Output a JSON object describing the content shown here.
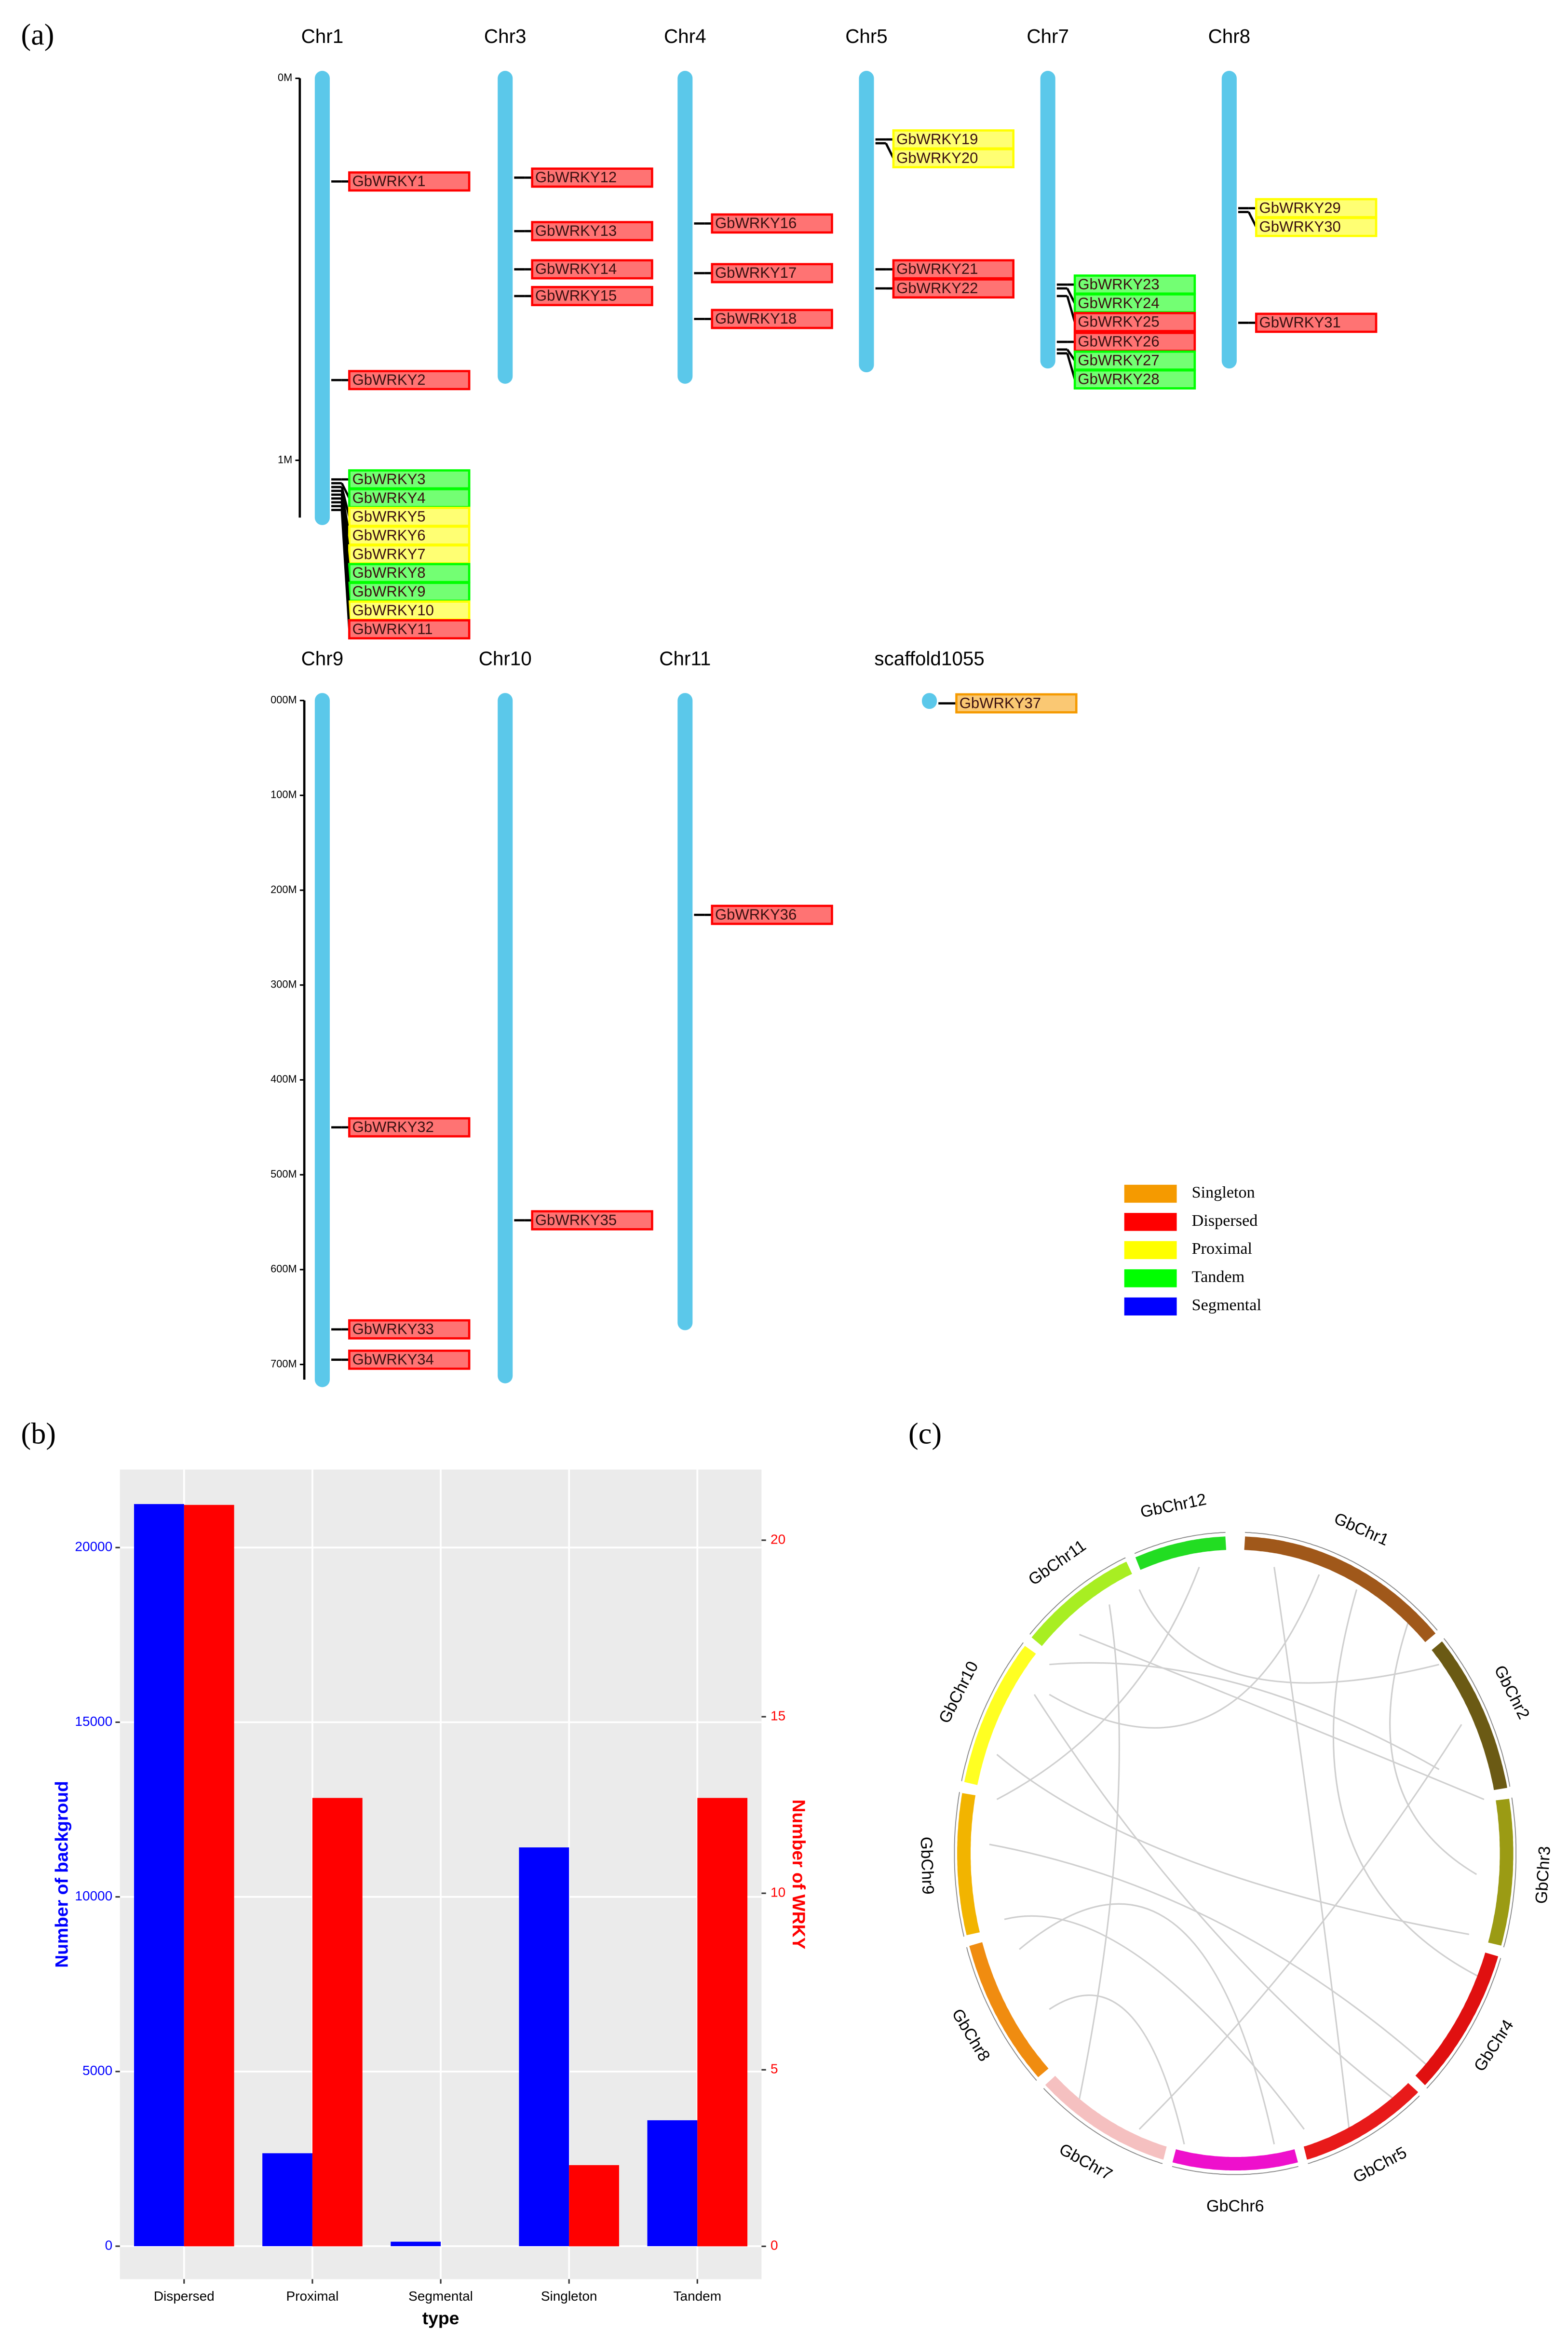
{
  "panel_labels": [
    "(a)",
    "(b)",
    "(c)"
  ],
  "gene_map": {
    "legend": [
      {
        "name": "Singleton",
        "color": "#f59a00"
      },
      {
        "name": "Dispersed",
        "color": "#ff0000"
      },
      {
        "name": "Proximal",
        "color": "#ffff00"
      },
      {
        "name": "Tandem",
        "color": "#00ff00"
      },
      {
        "name": "Segmental",
        "color": "#0000ff"
      }
    ],
    "rows": [
      {
        "ylim": [
          0,
          1.15
        ],
        "ticks": [
          {
            "value": 0,
            "label": "0M"
          },
          {
            "value": 1,
            "label": "1M"
          }
        ],
        "chromosomes": [
          {
            "name": "Chr1",
            "length": 1.15,
            "genes": [
              {
                "name": "GbWRKY1",
                "position": 0.27,
                "color": "#ff0000"
              },
              {
                "name": "GbWRKY2",
                "position": 0.79,
                "color": "#ff0000"
              },
              {
                "name": "GbWRKY3",
                "position": 1.05,
                "color": "#00ff00"
              },
              {
                "name": "GbWRKY4",
                "position": 1.06,
                "color": "#00ff00"
              },
              {
                "name": "GbWRKY5",
                "position": 1.07,
                "color": "#ffff00"
              },
              {
                "name": "GbWRKY6",
                "position": 1.08,
                "color": "#ffff00"
              },
              {
                "name": "GbWRKY7",
                "position": 1.09,
                "color": "#ffff00"
              },
              {
                "name": "GbWRKY8",
                "position": 1.1,
                "color": "#00ff00"
              },
              {
                "name": "GbWRKY9",
                "position": 1.11,
                "color": "#00ff00"
              },
              {
                "name": "GbWRKY10",
                "position": 1.12,
                "color": "#ffff00"
              },
              {
                "name": "GbWRKY11",
                "position": 1.13,
                "color": "#ff0000"
              }
            ]
          },
          {
            "name": "Chr3",
            "length": 0.78,
            "genes": [
              {
                "name": "GbWRKY12",
                "position": 0.26,
                "color": "#ff0000"
              },
              {
                "name": "GbWRKY13",
                "position": 0.4,
                "color": "#ff0000"
              },
              {
                "name": "GbWRKY14",
                "position": 0.5,
                "color": "#ff0000"
              },
              {
                "name": "GbWRKY15",
                "position": 0.57,
                "color": "#ff0000"
              }
            ]
          },
          {
            "name": "Chr4",
            "length": 0.78,
            "genes": [
              {
                "name": "GbWRKY16",
                "position": 0.38,
                "color": "#ff0000"
              },
              {
                "name": "GbWRKY17",
                "position": 0.51,
                "color": "#ff0000"
              },
              {
                "name": "GbWRKY18",
                "position": 0.63,
                "color": "#ff0000"
              }
            ]
          },
          {
            "name": "Chr5",
            "length": 0.75,
            "genes": [
              {
                "name": "GbWRKY19",
                "position": 0.16,
                "color": "#ffff00"
              },
              {
                "name": "GbWRKY20",
                "position": 0.17,
                "color": "#ffff00"
              },
              {
                "name": "GbWRKY21",
                "position": 0.5,
                "color": "#ff0000"
              },
              {
                "name": "GbWRKY22",
                "position": 0.55,
                "color": "#ff0000"
              }
            ]
          },
          {
            "name": "Chr7",
            "length": 0.74,
            "genes": [
              {
                "name": "GbWRKY23",
                "position": 0.54,
                "color": "#00ff00"
              },
              {
                "name": "GbWRKY24",
                "position": 0.55,
                "color": "#00ff00"
              },
              {
                "name": "GbWRKY25",
                "position": 0.57,
                "color": "#ff0000"
              },
              {
                "name": "GbWRKY26",
                "position": 0.69,
                "color": "#ff0000"
              },
              {
                "name": "GbWRKY27",
                "position": 0.71,
                "color": "#00ff00"
              },
              {
                "name": "GbWRKY28",
                "position": 0.72,
                "color": "#00ff00"
              }
            ]
          },
          {
            "name": "Chr8",
            "length": 0.74,
            "genes": [
              {
                "name": "GbWRKY29",
                "position": 0.34,
                "color": "#ffff00"
              },
              {
                "name": "GbWRKY30",
                "position": 0.35,
                "color": "#ffff00"
              },
              {
                "name": "GbWRKY31",
                "position": 0.64,
                "color": "#ff0000"
              }
            ]
          }
        ]
      },
      {
        "ylim": [
          0,
          716
        ],
        "ticks": [
          {
            "value": 0,
            "label": "000M"
          },
          {
            "value": 100,
            "label": "100M"
          },
          {
            "value": 200,
            "label": "200M"
          },
          {
            "value": 300,
            "label": "300M"
          },
          {
            "value": 400,
            "label": "400M"
          },
          {
            "value": 500,
            "label": "500M"
          },
          {
            "value": 600,
            "label": "600M"
          },
          {
            "value": 700,
            "label": "700M"
          }
        ],
        "chromosomes": [
          {
            "name": "Chr9",
            "length": 716,
            "genes": [
              {
                "name": "GbWRKY32",
                "position": 450,
                "color": "#ff0000"
              },
              {
                "name": "GbWRKY33",
                "position": 663,
                "color": "#ff0000"
              },
              {
                "name": "GbWRKY34",
                "position": 695,
                "color": "#ff0000"
              }
            ]
          },
          {
            "name": "Chr10",
            "length": 712,
            "genes": [
              {
                "name": "GbWRKY35",
                "position": 548,
                "color": "#ff0000"
              }
            ]
          },
          {
            "name": "Chr11",
            "length": 656,
            "genes": [
              {
                "name": "GbWRKY36",
                "position": 226,
                "color": "#ff0000"
              }
            ]
          },
          {
            "name": "scaffold1055",
            "length": 1,
            "genes": [
              {
                "name": "GbWRKY37",
                "position": 3,
                "color": "#f59a00"
              }
            ]
          }
        ]
      }
    ]
  },
  "chart_data": {
    "type": "bar",
    "x_label": "type",
    "y_label": "Number of backgroud",
    "y2_label": "Number of WRKY",
    "categories": [
      "Dispersed",
      "Proximal",
      "Segmental",
      "Singleton",
      "Tandem"
    ],
    "series": [
      {
        "color": "#0000ff",
        "values": [
          21245,
          2661,
          129,
          11416,
          3605
        ]
      },
      {
        "color": "#ff0000",
        "axis": "y2",
        "values": [
          21,
          12.7,
          0,
          2.3,
          12.7
        ]
      }
    ],
    "ylim": [
      -944,
      22232
    ],
    "yticks": [
      0,
      5000,
      10000,
      15000,
      20000
    ],
    "y2lim": [
      -0.93,
      22
    ],
    "y2ticks": [
      0,
      5,
      10,
      15,
      20
    ],
    "grid": true
  },
  "circos": {
    "chromosomes": [
      {
        "name": "GbChr1",
        "color": "#a0581a"
      },
      {
        "name": "GbChr2",
        "color": "#6b5a14"
      },
      {
        "name": "GbChr3",
        "color": "#9b9b14"
      },
      {
        "name": "GbChr4",
        "color": "#e01010"
      },
      {
        "name": "GbChr5",
        "color": "#e81a1a"
      },
      {
        "name": "GbChr6",
        "color": "#ee10cc"
      },
      {
        "name": "GbChr7",
        "color": "#f5c0c0"
      },
      {
        "name": "GbChr8",
        "color": "#f08c10"
      },
      {
        "name": "GbChr9",
        "color": "#f2b400"
      },
      {
        "name": "GbChr10",
        "color": "#ffff22"
      },
      {
        "name": "GbChr11",
        "color": "#a8ee22"
      },
      {
        "name": "GbChr12",
        "color": "#22dd22"
      }
    ]
  }
}
